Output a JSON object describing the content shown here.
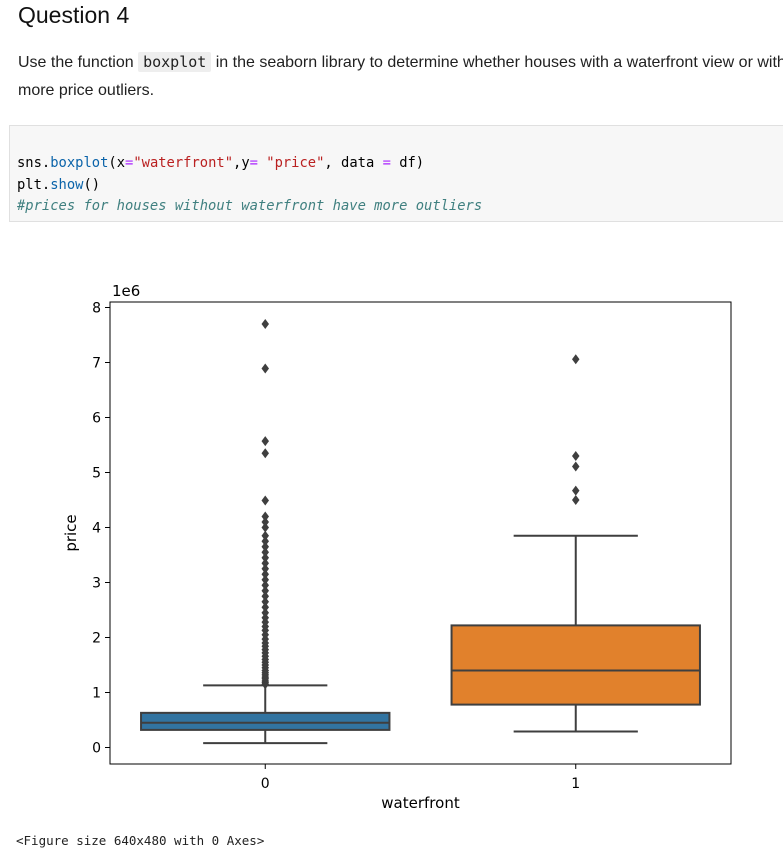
{
  "question": {
    "title": "Question 4",
    "text_before": "Use the function ",
    "function_name": "boxplot",
    "text_after_line1": " in the seaborn library to determine whether houses with a waterfront view or without a waterfront view have",
    "text_line2": "more price outliers."
  },
  "code": {
    "line1_prefix": "sns.",
    "line1_fn": "boxplot",
    "line1_open": "(x",
    "line1_eq1": "=",
    "line1_str1": "\"waterfront\"",
    "line1_mid": ",y",
    "line1_eq2": "=",
    "line1_sp": " ",
    "line1_str2": "\"price\"",
    "line1_data": ", data ",
    "line1_eq3": "=",
    "line1_end": " df)",
    "line2_prefix": "plt.",
    "line2_fn": "show",
    "line2_end": "()",
    "line3_comment": "#prices for houses without waterfront have more outliers"
  },
  "output_repr": "<Figure size 640x480 with 0 Axes>",
  "chart_data": {
    "type": "box",
    "xlabel": "waterfront",
    "ylabel": "price",
    "offset_text": "1e6",
    "ylim": [
      -0.3,
      8.1
    ],
    "yticks": [
      0,
      1,
      2,
      3,
      4,
      5,
      6,
      7,
      8
    ],
    "categories": [
      "0",
      "1"
    ],
    "colors": {
      "0": "#3274a1",
      "1": "#e1812c",
      "lines": "#3f3f3f"
    },
    "boxes": [
      {
        "category": "0",
        "whislo": 0.08,
        "q1": 0.32,
        "median": 0.45,
        "q3": 0.63,
        "whishi": 1.13,
        "fliers": [
          1.15,
          1.18,
          1.21,
          1.25,
          1.28,
          1.32,
          1.36,
          1.4,
          1.45,
          1.5,
          1.55,
          1.6,
          1.66,
          1.72,
          1.78,
          1.84,
          1.9,
          1.97,
          2.05,
          2.13,
          2.2,
          2.28,
          2.36,
          2.45,
          2.55,
          2.65,
          2.75,
          2.85,
          2.95,
          3.05,
          3.15,
          3.25,
          3.35,
          3.45,
          3.55,
          3.65,
          3.75,
          3.85,
          4.0,
          4.1,
          4.2,
          4.49,
          5.35,
          5.57,
          6.89,
          7.7
        ]
      },
      {
        "category": "1",
        "whislo": 0.29,
        "q1": 0.78,
        "median": 1.4,
        "q3": 2.22,
        "whishi": 3.85,
        "fliers": [
          4.5,
          4.67,
          5.11,
          5.3,
          7.06
        ]
      }
    ]
  }
}
